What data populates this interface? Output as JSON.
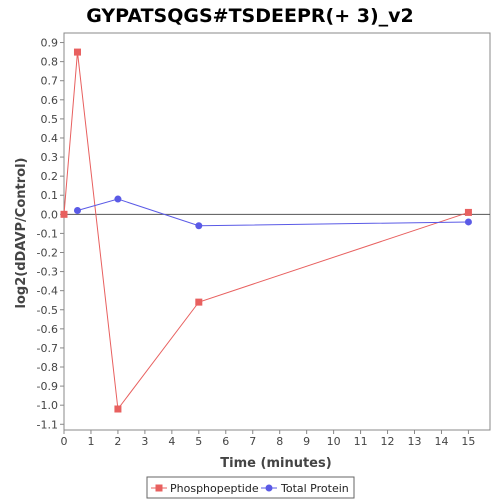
{
  "chart_data": {
    "type": "line",
    "title": "GYPATSQGS#TSDEEPR(+ 3)_v2",
    "xlabel": "Time (minutes)",
    "ylabel": "log2(dDAVP/Control)",
    "xlim": [
      0,
      15.8
    ],
    "ylim": [
      -1.13,
      0.95
    ],
    "xticks": [
      0,
      1,
      2,
      3,
      4,
      5,
      6,
      7,
      8,
      9,
      10,
      11,
      12,
      13,
      14,
      15
    ],
    "yticks": [
      0.9,
      0.8,
      0.7,
      0.6,
      0.5,
      0.4,
      0.3,
      0.2,
      0.1,
      0.0,
      -0.1,
      -0.2,
      -0.3,
      -0.4,
      -0.5,
      -0.6,
      -0.7,
      -0.8,
      -0.9,
      -1.0,
      -1.1
    ],
    "ytick_labels": [
      "0.9",
      "0.8",
      "0.7",
      "0.6",
      "0.5",
      "0.4",
      "0.3",
      "0.2",
      "0.1",
      "0.0",
      "-0.1",
      "-0.2",
      "-0.3",
      "-0.4",
      "-0.5",
      "-0.6",
      "-0.7",
      "-0.8",
      "-0.9",
      "-1.0",
      "-1.1"
    ],
    "grid": false,
    "zero_line": true,
    "legend_position": "bottom",
    "series": [
      {
        "name": "Phosphopeptide",
        "color": "#e8605f",
        "marker": "square",
        "x": [
          0,
          0.5,
          2,
          5,
          15
        ],
        "y": [
          0.0,
          0.85,
          -1.02,
          -0.46,
          0.01
        ]
      },
      {
        "name": "Total Protein",
        "color": "#5a5ae6",
        "marker": "circle",
        "x": [
          0.5,
          2,
          5,
          15
        ],
        "y": [
          0.02,
          0.08,
          -0.06,
          -0.04
        ]
      }
    ]
  }
}
